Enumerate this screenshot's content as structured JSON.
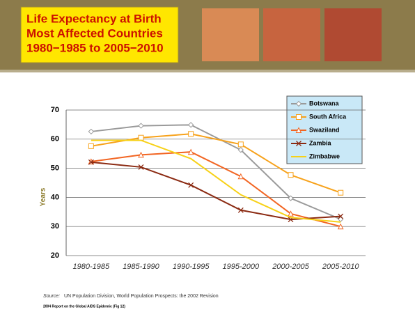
{
  "chart_data": {
    "type": "line",
    "title": [
      "Life Expectancy at Birth",
      "Most Affected Countries",
      "1980−1985 to 2005−2010"
    ],
    "y_label": "Years",
    "categories": [
      "1980-1985",
      "1985-1990",
      "1990-1995",
      "1995-2000",
      "2000-2005",
      "2005-2010"
    ],
    "series": [
      {
        "name": "Botswana",
        "color": "#9a9a9a",
        "marker": "diamond",
        "values": [
          62.6,
          64.6,
          64.9,
          56.3,
          39.7,
          32.5
        ]
      },
      {
        "name": "South Africa",
        "color": "#f7a21b",
        "marker": "square",
        "values": [
          57.6,
          60.5,
          61.8,
          58.2,
          47.7,
          41.6
        ]
      },
      {
        "name": "Swaziland",
        "color": "#f26522",
        "marker": "triangle",
        "values": [
          52.3,
          54.6,
          55.6,
          47.2,
          34.4,
          30.0
        ]
      },
      {
        "name": "Zambia",
        "color": "#8b2a12",
        "marker": "x",
        "values": [
          52.1,
          50.4,
          44.2,
          35.6,
          32.4,
          33.5
        ]
      },
      {
        "name": "Zimbabwe",
        "color": "#f7d117",
        "marker": "none",
        "values": [
          59.6,
          59.6,
          53.3,
          40.9,
          33.1,
          31.5
        ]
      }
    ],
    "ylim": [
      20,
      70
    ],
    "yticks": [
      20,
      30,
      40,
      50,
      60,
      70
    ],
    "grid": true,
    "legend": "upper right",
    "source_label": "Source:",
    "source": "UN Population Division, World Population Prospects: the 2002 Revision",
    "footer": "2004 Report on the Global AIDS Epidemic (Fig 12)"
  }
}
